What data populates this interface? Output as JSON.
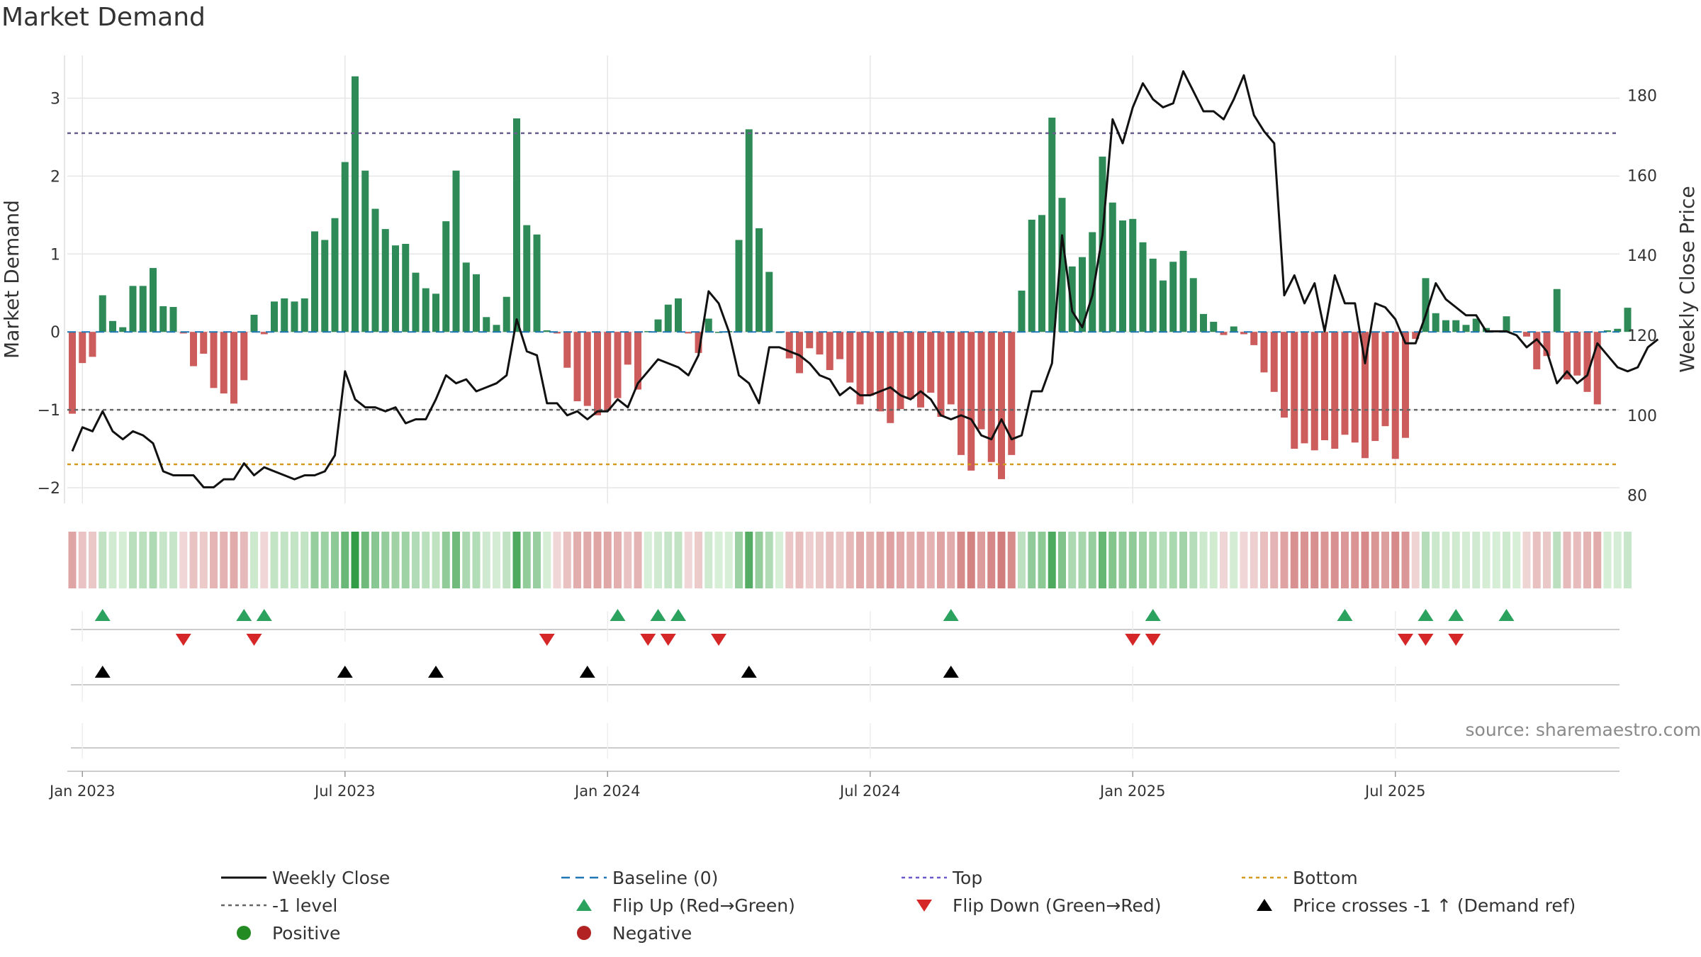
{
  "title": "Market Demand",
  "source": "source: sharemaestro.com",
  "chart_data": {
    "type": "bar",
    "title": "Market Demand",
    "ylabel": "Market Demand",
    "y2label": "Weekly Close Price",
    "ylim": [
      -2.2,
      3.55
    ],
    "y2lim": [
      78,
      190
    ],
    "yticks": [
      "3",
      "2",
      "1",
      "0",
      "−1",
      "−2"
    ],
    "yticks_values": [
      3,
      2,
      1,
      0,
      -1,
      -2
    ],
    "y2ticks": [
      "180",
      "160",
      "140",
      "120",
      "100",
      "80"
    ],
    "y2ticks_values": [
      180,
      160,
      140,
      120,
      100,
      80
    ],
    "xticks": [
      "Jan 2023",
      "Jul 2023",
      "Jan 2024",
      "Jul 2024",
      "Jan 2025",
      "Jul 2025"
    ],
    "xticks_weeks": [
      1,
      27,
      53,
      79,
      105,
      131
    ],
    "levels": {
      "top": 2.55,
      "minus_one": -1.0,
      "bottom": -1.7,
      "baseline": 0
    },
    "series": [
      {
        "name": "Market Demand",
        "kind": "bar",
        "values": [
          -1.05,
          -0.4,
          -0.32,
          0.47,
          0.14,
          0.06,
          0.59,
          0.59,
          0.82,
          0.33,
          0.32,
          -0.02,
          -0.44,
          -0.28,
          -0.72,
          -0.79,
          -0.92,
          -0.62,
          0.22,
          -0.03,
          0.39,
          0.43,
          0.39,
          0.43,
          1.29,
          1.18,
          1.46,
          2.18,
          3.28,
          2.07,
          1.58,
          1.32,
          1.11,
          1.13,
          0.76,
          0.56,
          0.49,
          1.42,
          2.07,
          0.89,
          0.74,
          0.19,
          0.09,
          0.45,
          2.74,
          1.37,
          1.25,
          0.02,
          -0.02,
          -0.46,
          -0.89,
          -0.95,
          -1.07,
          -1.01,
          -0.85,
          -0.42,
          -0.74,
          0.01,
          0.16,
          0.35,
          0.43,
          -0.02,
          -0.27,
          0.17,
          0,
          0.01,
          1.18,
          2.6,
          1.33,
          0.77,
          0,
          -0.34,
          -0.53,
          -0.21,
          -0.29,
          -0.49,
          -0.35,
          -0.65,
          -0.93,
          -0.82,
          -1.02,
          -1.17,
          -0.99,
          -0.86,
          -0.97,
          -0.78,
          -1.09,
          -0.93,
          -1.58,
          -1.78,
          -1.25,
          -1.67,
          -1.89,
          -1.58,
          0.53,
          1.44,
          1.5,
          2.75,
          1.72,
          0.84,
          0.96,
          1.28,
          2.25,
          1.66,
          1.43,
          1.45,
          1.15,
          0.94,
          0.66,
          0.9,
          1.04,
          0.69,
          0.23,
          0.13,
          -0.04,
          0.07,
          -0.03,
          -0.17,
          -0.52,
          -0.77,
          -1.1,
          -1.5,
          -1.43,
          -1.52,
          -1.39,
          -1.5,
          -1.32,
          -1.42,
          -1.62,
          -1.4,
          -1.21,
          -1.63,
          -1.36,
          -0.09,
          0.69,
          0.24,
          0.15,
          0.15,
          0.09,
          0.17,
          0.05,
          0.02,
          0.2,
          0.01,
          -0.06,
          -0.48,
          -0.31,
          0.55,
          -0.61,
          -0.56,
          -0.77,
          -0.93,
          0.02,
          0.04,
          0.31
        ]
      },
      {
        "name": "Weekly Close",
        "kind": "line",
        "values": [
          91,
          97,
          96,
          101,
          96,
          94,
          96,
          95,
          93,
          86,
          85,
          85,
          85,
          82,
          82,
          84,
          84,
          88,
          85,
          87,
          86,
          85,
          84,
          85,
          85,
          86,
          90,
          111,
          104,
          102,
          102,
          101,
          102,
          98,
          99,
          99,
          104,
          110,
          108,
          109,
          106,
          107,
          108,
          110,
          124,
          116,
          115,
          103,
          103,
          100,
          101,
          99,
          101,
          101,
          104,
          102,
          108,
          111,
          114,
          113,
          112,
          110,
          115,
          131,
          128,
          121,
          110,
          108,
          103,
          117,
          117,
          116,
          115,
          113,
          110,
          109,
          105,
          107,
          105,
          105,
          106,
          107,
          105,
          104,
          106,
          104,
          100,
          99,
          100,
          99,
          95,
          94,
          99,
          94,
          95,
          106,
          106,
          113,
          145,
          126,
          122,
          130,
          145,
          174,
          168,
          177,
          183,
          179,
          177,
          178,
          186,
          181,
          176,
          176,
          174,
          179,
          185,
          175,
          171,
          168,
          130,
          135,
          128,
          133,
          121,
          135,
          128,
          128,
          113,
          128,
          127,
          124,
          118,
          118,
          125,
          133,
          129,
          127,
          125,
          125,
          121,
          121,
          121,
          120,
          117,
          119,
          116,
          108,
          111,
          108,
          110,
          118,
          115,
          112,
          111,
          112,
          117,
          119
        ]
      }
    ],
    "flip_up_weeks": [
      3,
      17,
      19,
      54,
      58,
      60,
      87,
      107,
      126,
      134,
      137,
      142
    ],
    "flip_down_weeks": [
      11,
      18,
      47,
      57,
      59,
      64,
      105,
      107,
      132,
      134,
      137
    ],
    "price_cross_weeks": [
      3,
      27,
      36,
      51,
      67,
      87
    ]
  },
  "legend": [
    {
      "label": "Weekly Close",
      "marker": "solid-line",
      "color": "#111111"
    },
    {
      "label": "Baseline (0)",
      "marker": "dash-line",
      "color": "#1f77b4"
    },
    {
      "label": "Top",
      "marker": "dot-line",
      "color": "#6a5acd"
    },
    {
      "label": "Bottom",
      "marker": "dot-line",
      "color": "#d49a1e"
    },
    {
      "label": "-1 level",
      "marker": "dot-line",
      "color": "#666666"
    },
    {
      "label": "Flip Up (Red→Green)",
      "marker": "triangle-up",
      "color": "#2ca25f"
    },
    {
      "label": "Flip Down (Green→Red)",
      "marker": "triangle-down",
      "color": "#d62728"
    },
    {
      "label": "Price crosses -1 ↑ (Demand ref)",
      "marker": "triangle-up",
      "color": "#000000"
    },
    {
      "label": "Positive",
      "marker": "circle",
      "color": "#228b22"
    },
    {
      "label": "Negative",
      "marker": "circle",
      "color": "#b22222"
    }
  ],
  "colors": {
    "positive": "#2e8b57",
    "negative": "#cd5c5c",
    "grid": "#e6e6e6"
  }
}
